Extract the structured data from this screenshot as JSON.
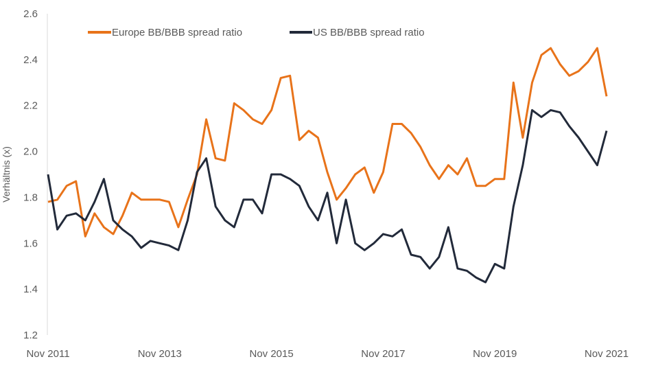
{
  "chart_data": {
    "type": "line",
    "title": "",
    "xlabel": "",
    "ylabel": "Verhältnis (x)",
    "ylim": [
      1.2,
      2.6
    ],
    "yticks": [
      "1.2",
      "1.4",
      "1.6",
      "1.8",
      "2.0",
      "2.2",
      "2.4",
      "2.6"
    ],
    "xticks": [
      "Nov 2011",
      "Nov 2013",
      "Nov 2015",
      "Nov 2017",
      "Nov 2019",
      "Nov 2021"
    ],
    "xlim": [
      "2011-11",
      "2021-11"
    ],
    "grid": false,
    "legend": "top",
    "x": [
      "2011-11",
      "2012-01",
      "2012-03",
      "2012-05",
      "2012-07",
      "2012-09",
      "2012-11",
      "2013-01",
      "2013-03",
      "2013-05",
      "2013-07",
      "2013-09",
      "2013-11",
      "2014-01",
      "2014-03",
      "2014-05",
      "2014-07",
      "2014-09",
      "2014-11",
      "2015-01",
      "2015-03",
      "2015-05",
      "2015-07",
      "2015-09",
      "2015-11",
      "2016-01",
      "2016-03",
      "2016-05",
      "2016-07",
      "2016-09",
      "2016-11",
      "2017-01",
      "2017-03",
      "2017-05",
      "2017-07",
      "2017-09",
      "2017-11",
      "2018-01",
      "2018-03",
      "2018-05",
      "2018-07",
      "2018-09",
      "2018-11",
      "2019-01",
      "2019-03",
      "2019-05",
      "2019-07",
      "2019-09",
      "2019-11",
      "2020-01",
      "2020-03",
      "2020-05",
      "2020-07",
      "2020-09",
      "2020-11",
      "2021-01",
      "2021-03",
      "2021-05",
      "2021-07",
      "2021-09",
      "2021-11"
    ],
    "series": [
      {
        "name": "Europe BB/BBB spread ratio",
        "color": "#E8731A",
        "values": [
          1.78,
          1.79,
          1.85,
          1.87,
          1.63,
          1.73,
          1.67,
          1.64,
          1.72,
          1.82,
          1.79,
          1.79,
          1.79,
          1.78,
          1.67,
          1.79,
          1.9,
          2.14,
          1.97,
          1.96,
          2.21,
          2.18,
          2.14,
          2.12,
          2.18,
          2.32,
          2.33,
          2.05,
          2.09,
          2.06,
          1.91,
          1.79,
          1.84,
          1.9,
          1.93,
          1.82,
          1.91,
          2.12,
          2.12,
          2.08,
          2.02,
          1.94,
          1.88,
          1.94,
          1.9,
          1.97,
          1.85,
          1.85,
          1.88,
          1.88,
          2.3,
          2.06,
          2.3,
          2.42,
          2.45,
          2.38,
          2.33,
          2.35,
          2.39,
          2.45,
          2.24
        ]
      },
      {
        "name": "US BB/BBB spread ratio",
        "color": "#222A3A",
        "values": [
          1.9,
          1.66,
          1.72,
          1.73,
          1.7,
          1.78,
          1.88,
          1.7,
          1.66,
          1.63,
          1.58,
          1.61,
          1.6,
          1.59,
          1.57,
          1.7,
          1.91,
          1.97,
          1.76,
          1.7,
          1.67,
          1.79,
          1.79,
          1.73,
          1.9,
          1.9,
          1.88,
          1.85,
          1.76,
          1.7,
          1.82,
          1.6,
          1.79,
          1.6,
          1.57,
          1.6,
          1.64,
          1.63,
          1.66,
          1.55,
          1.54,
          1.49,
          1.54,
          1.67,
          1.49,
          1.48,
          1.45,
          1.43,
          1.51,
          1.49,
          1.76,
          1.94,
          2.18,
          2.15,
          2.18,
          2.17,
          2.11,
          2.06,
          2.0,
          1.94,
          2.09
        ]
      }
    ]
  }
}
